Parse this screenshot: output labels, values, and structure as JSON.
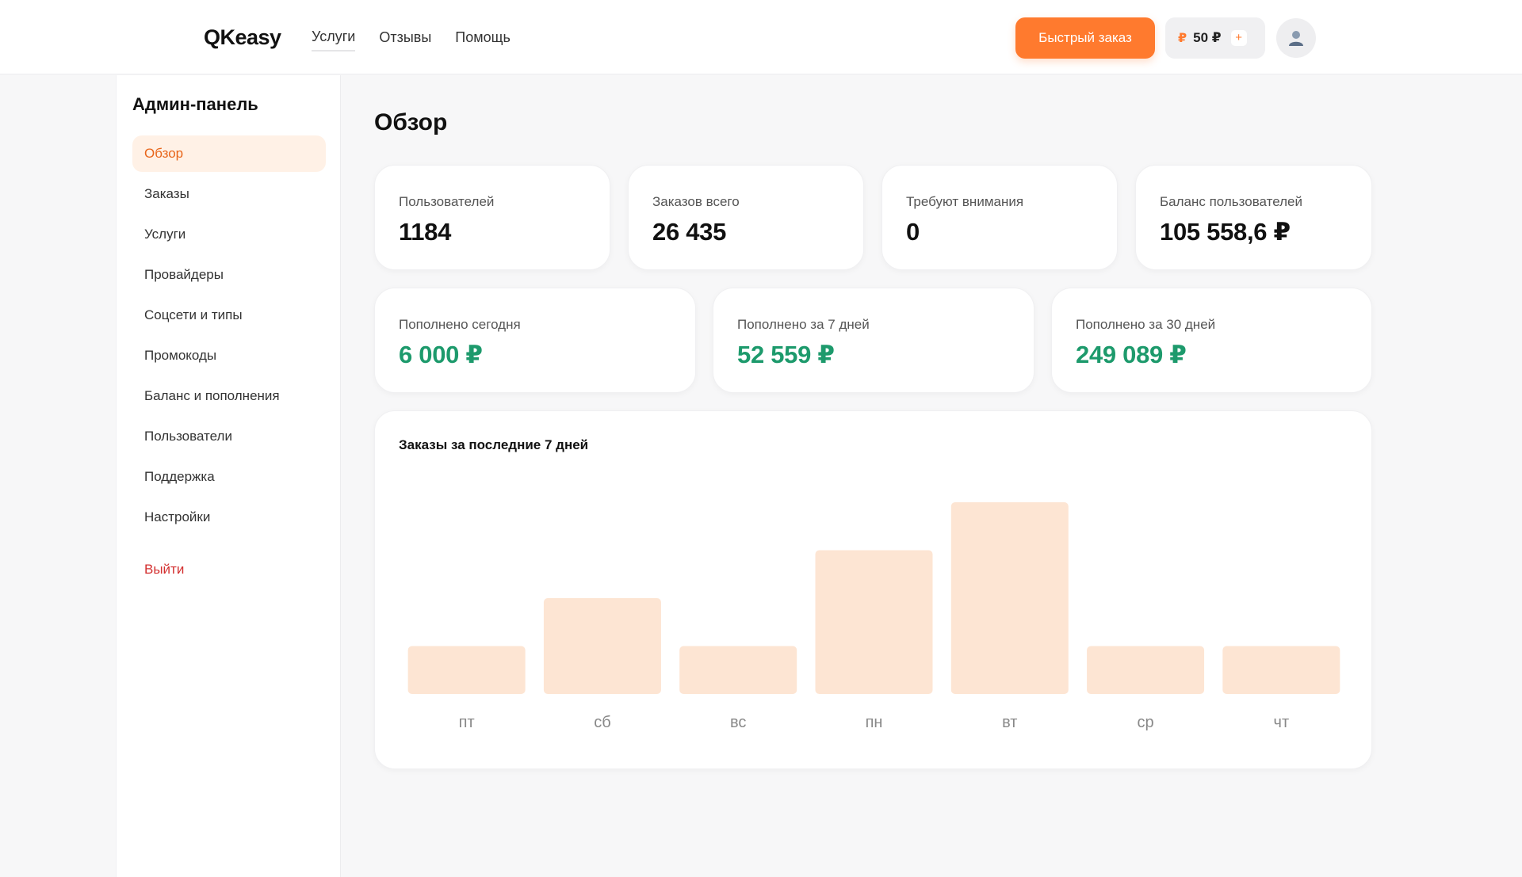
{
  "header": {
    "logo": "QKeasy",
    "nav": [
      "Услуги",
      "Отзывы",
      "Помощь"
    ],
    "quick_order_label": "Быстрый заказ",
    "balance": "50 ₽",
    "balance_currency_icon": "₽",
    "balance_plus": "+",
    "avatar_icon": "user-icon",
    "accent_color": "#ff7a2e"
  },
  "sidebar": {
    "title": "Админ-панель",
    "items": [
      "Обзор",
      "Заказы",
      "Услуги",
      "Провайдеры",
      "Соцсети и типы",
      "Промокоды",
      "Баланс и пополнения",
      "Пользователи",
      "Поддержка",
      "Настройки"
    ],
    "active_item": "Обзор",
    "logout_label": "Выйти"
  },
  "main": {
    "title": "Обзор",
    "stats_row1": [
      {
        "label": "Пользователей",
        "value": "1184"
      },
      {
        "label": "Заказов всего",
        "value": "26 435"
      },
      {
        "label": "Требуют внимания",
        "value": "0"
      },
      {
        "label": "Баланс пользователей",
        "value": "105 558,6 ₽"
      }
    ],
    "stats_row2": [
      {
        "label": "Пополнено сегодня",
        "value": "6 000 ₽"
      },
      {
        "label": "Пополнено за 7 дней",
        "value": "52 559 ₽"
      },
      {
        "label": "Пополнено за 30 дней",
        "value": "249 089 ₽"
      }
    ],
    "positive_color": "#1d9a6c"
  },
  "chart_data": {
    "type": "bar",
    "title": "Заказы за последние 7 дней",
    "categories": [
      "пт",
      "сб",
      "вс",
      "пн",
      "вт",
      "ср",
      "чт"
    ],
    "values": [
      1,
      2,
      1,
      3,
      4,
      1,
      1
    ],
    "ylim": [
      0,
      4
    ],
    "grid": false,
    "bar_color": "#fde5d3"
  }
}
